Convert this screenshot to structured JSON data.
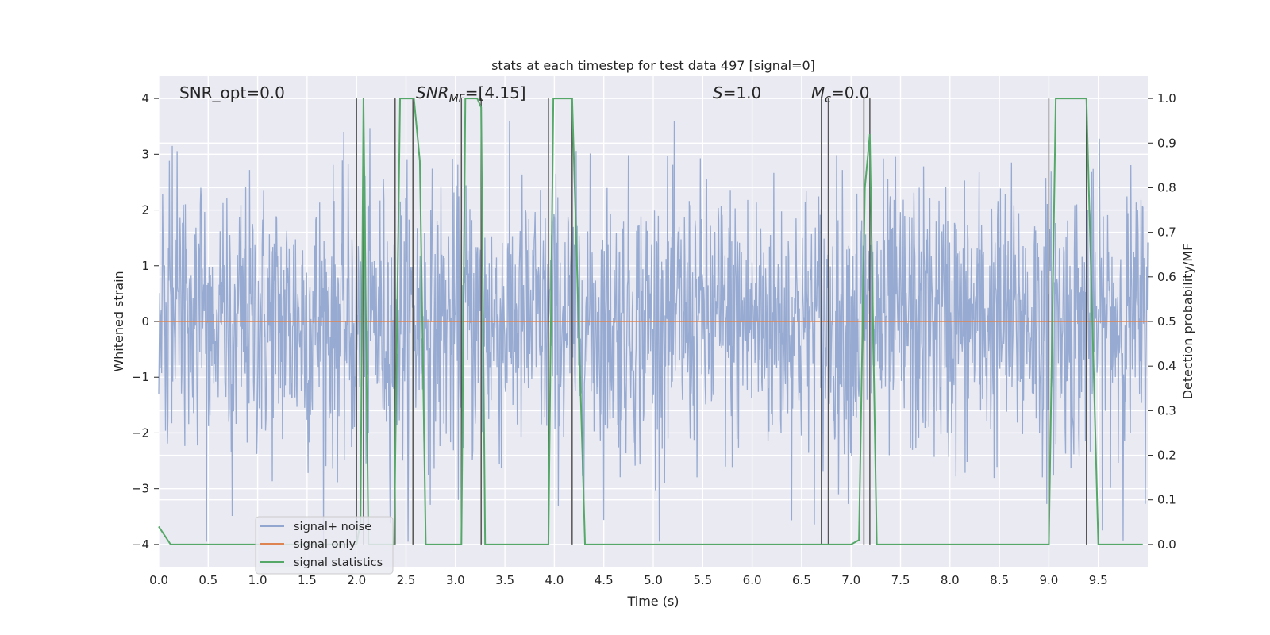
{
  "chart_data": {
    "type": "line",
    "title": "stats at each timestep for test data 497 [signal=0]",
    "xlabel": "Time (s)",
    "ylabel": "Whitened strain",
    "y2label": "Detection probability/MF",
    "xlim": [
      0.0,
      10.0
    ],
    "ylim": [
      -4.4,
      4.4
    ],
    "y2lim": [
      -0.05,
      1.05
    ],
    "xticks": [
      0.0,
      0.5,
      1.0,
      1.5,
      2.0,
      2.5,
      3.0,
      3.5,
      4.0,
      4.5,
      5.0,
      5.5,
      6.0,
      6.5,
      7.0,
      7.5,
      8.0,
      8.5,
      9.0,
      9.5
    ],
    "xtick_labels": [
      "0.0",
      "0.5",
      "1.0",
      "1.5",
      "2.0",
      "2.5",
      "3.0",
      "3.5",
      "4.0",
      "4.5",
      "5.0",
      "5.5",
      "6.0",
      "6.5",
      "7.0",
      "7.5",
      "8.0",
      "8.5",
      "9.0",
      "9.5"
    ],
    "yticks": [
      -4,
      -3,
      -2,
      -1,
      0,
      1,
      2,
      3,
      4
    ],
    "ytick_labels": [
      "−4",
      "−3",
      "−2",
      "−1",
      "0",
      "1",
      "2",
      "3",
      "4"
    ],
    "y2ticks": [
      0.0,
      0.1,
      0.2,
      0.3,
      0.4,
      0.5,
      0.6,
      0.7,
      0.8,
      0.9,
      1.0
    ],
    "y2tick_labels": [
      "0.0",
      "0.1",
      "0.2",
      "0.3",
      "0.4",
      "0.5",
      "0.6",
      "0.7",
      "0.8",
      "0.9",
      "1.0"
    ],
    "grid": true,
    "legend_position": "lower-left",
    "annotations": [
      {
        "kind": "plain",
        "text": "SNR_opt=0.0"
      },
      {
        "kind": "sub",
        "base": "SNR",
        "sub": "MF",
        "rest": "=[4.15]"
      },
      {
        "kind": "italic",
        "base": "S",
        "rest": "=1.0"
      },
      {
        "kind": "sub",
        "base": "M",
        "sub": "c",
        "rest": "=0.0"
      }
    ],
    "series": [
      {
        "name": "signal+ noise",
        "color": "#92a6cf",
        "axis": "left",
        "noise": {
          "x_start": 0.0,
          "x_end": 10.0,
          "samples": 2048,
          "std": 1.25,
          "peak_max": 3.6,
          "peak_min": -3.95
        }
      },
      {
        "name": "signal only",
        "color": "#dd8452",
        "axis": "left",
        "x": [
          0.0,
          10.0
        ],
        "y": [
          0.0,
          0.0
        ]
      },
      {
        "name": "signal statistics",
        "color": "#55a868",
        "axis": "right",
        "x": [
          0.0,
          0.12,
          2.0,
          2.04,
          2.07,
          2.12,
          2.38,
          2.44,
          2.58,
          2.64,
          2.7,
          3.06,
          3.1,
          3.22,
          3.26,
          3.3,
          3.94,
          3.99,
          4.18,
          4.31,
          7.0,
          7.08,
          7.14,
          7.19,
          7.26,
          9.0,
          9.07,
          9.38,
          9.5,
          9.95
        ],
        "y": [
          0.04,
          0.0,
          0.0,
          0.05,
          1.0,
          0.0,
          0.0,
          1.0,
          1.0,
          0.86,
          0.0,
          0.0,
          1.0,
          1.0,
          0.98,
          0.0,
          0.0,
          1.0,
          1.0,
          0.0,
          0.0,
          0.01,
          0.8,
          0.92,
          0.0,
          0.0,
          1.0,
          1.0,
          0.0,
          0.0
        ]
      }
    ],
    "vlines": {
      "color": "#555555",
      "x": [
        2.0,
        2.07,
        2.39,
        2.57,
        3.06,
        3.26,
        3.94,
        4.18,
        6.7,
        6.77,
        7.13,
        7.19,
        9.0,
        9.38
      ],
      "ymin": 0.0,
      "ymax": 1.0
    }
  }
}
